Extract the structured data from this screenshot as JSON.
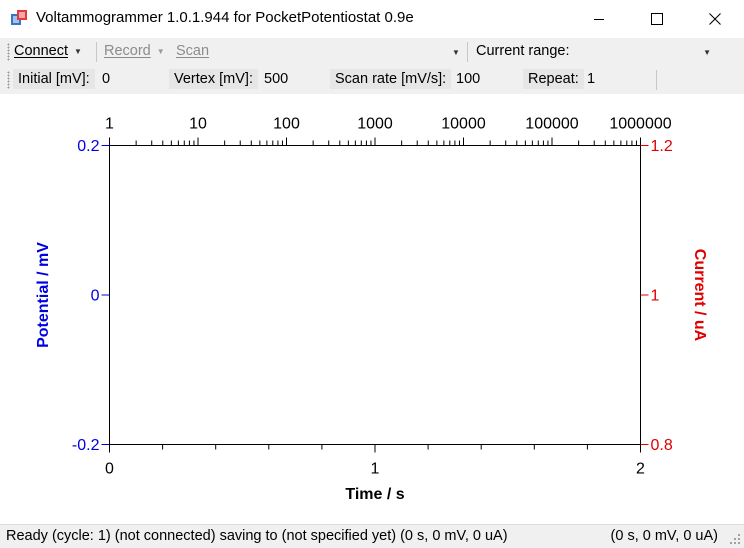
{
  "window": {
    "title": "Voltammogrammer 1.0.1.944 for PocketPotentiostat 0.9e"
  },
  "toolbar": {
    "connect_label": "Connect",
    "record_label": "Record",
    "scan_label": "Scan",
    "current_range_label": "Current range:",
    "current_range_value": ""
  },
  "params": {
    "initial_label": "Initial [mV]:",
    "initial_value": "0",
    "vertex_label": "Vertex [mV]:",
    "vertex_value": "500",
    "scan_rate_label": "Scan rate [mV/s]:",
    "scan_rate_value": "100",
    "repeat_label": "Repeat:",
    "repeat_value": "1"
  },
  "status": {
    "left_text": "Ready  (cycle: 1)  (not connected)  saving to   (not specified yet)  (0 s, 0 mV, 0 uA)",
    "right_text": "(0 s, 0 mV, 0 uA)"
  },
  "colors": {
    "potential_axis": "#0000e0",
    "current_axis": "#e00000"
  },
  "chart_data": {
    "type": "line",
    "series": [],
    "xlabel": "Time / s",
    "x_ticks": [
      "0",
      "1",
      "2"
    ],
    "xlim": [
      0,
      2
    ],
    "x2_ticks": [
      "1",
      "10",
      "100",
      "1000",
      "10000",
      "100000",
      "1000000"
    ],
    "x2_scale": "log",
    "x2lim": [
      1,
      1000000
    ],
    "ylabel_left": "Potential / mV",
    "y_left_ticks": [
      "0.2",
      "0",
      "-0.2"
    ],
    "ylim_left": [
      -0.2,
      0.2
    ],
    "ylabel_right": "Current / uA",
    "y_right_ticks": [
      "1.2",
      "1",
      "0.8"
    ],
    "ylim_right": [
      0.8,
      1.2
    ],
    "grid": false
  }
}
